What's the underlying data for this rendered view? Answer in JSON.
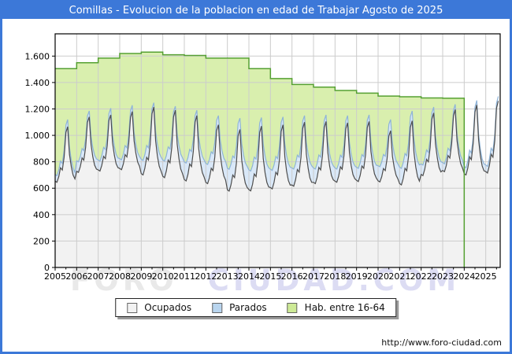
{
  "window": {
    "title": "Comillas - Evolucion de la poblacion en edad de Trabajar Agosto de 2025"
  },
  "footer": {
    "url": "http://www.foro-ciudad.com"
  },
  "watermark": {
    "part1": "FORO",
    "part2": "CIUDAD.COM"
  },
  "legend": {
    "items": [
      {
        "label": "Ocupados",
        "color": "#f2f2f2",
        "border": "#666666"
      },
      {
        "label": "Parados",
        "color": "#b9d5ef",
        "border": "#666666"
      },
      {
        "label": "Hab. entre 16-64",
        "color": "#cdea96",
        "border": "#666666"
      }
    ]
  },
  "chart_data": {
    "type": "area",
    "title": "Comillas - Evolucion de la poblacion en edad de Trabajar Agosto de 2025",
    "xlabel": "",
    "ylabel": "",
    "grid": true,
    "legend_position": "bottom",
    "ylim": [
      0,
      1700
    ],
    "xlim": [
      2005,
      2025.67
    ],
    "y_ticks": [
      {
        "value": 0,
        "label": "0"
      },
      {
        "value": 200,
        "label": "200"
      },
      {
        "value": 400,
        "label": "400"
      },
      {
        "value": 600,
        "label": "600"
      },
      {
        "value": 800,
        "label": "800"
      },
      {
        "value": 1000,
        "label": "1.000"
      },
      {
        "value": 1200,
        "label": "1.200"
      },
      {
        "value": 1400,
        "label": "1.400"
      },
      {
        "value": 1600,
        "label": "1.600"
      }
    ],
    "x_tick_labels": [
      "2005",
      "2006",
      "2007",
      "2008",
      "2009",
      "2010",
      "2011",
      "2012",
      "2013",
      "2014",
      "2015",
      "2016",
      "2017",
      "2018",
      "2019",
      "2020",
      "2021",
      "2022",
      "2023",
      "2024",
      "2025"
    ],
    "colors": {
      "hab_fill": "#d9efae",
      "hab_line": "#55a032",
      "parados_fill": "#d9e8f8",
      "parados_line": "#8fb4d8",
      "ocupados_fill": "#f2f2f2",
      "ocupados_line": "#4d4d4d",
      "grid": "#cccccc",
      "axis": "#000000"
    },
    "hab_16_64": {
      "name": "Hab. entre 16-64",
      "years": [
        2005,
        2006,
        2007,
        2008,
        2009,
        2010,
        2011,
        2012,
        2013,
        2014,
        2015,
        2016,
        2017,
        2018,
        2019,
        2020,
        2021,
        2022,
        2023
      ],
      "values": [
        1505,
        1550,
        1585,
        1620,
        1630,
        1610,
        1605,
        1585,
        1585,
        1505,
        1430,
        1385,
        1365,
        1340,
        1320,
        1297,
        1292,
        1283,
        1281
      ],
      "series_ends_at_year": 2024
    },
    "seasonal_profile": [
      0.02,
      0.0,
      0.1,
      0.26,
      0.22,
      0.45,
      0.9,
      1.0,
      0.5,
      0.28,
      0.13,
      0.06
    ],
    "employment_by_year": [
      {
        "year": 2005,
        "ocupados_winter": 645,
        "ocupados_summer": 1065,
        "parados_winter": 50,
        "parados_summer": 55,
        "months": 12
      },
      {
        "year": 2006,
        "ocupados_winter": 720,
        "ocupados_summer": 1140,
        "parados_winter": 80,
        "parados_summer": 45,
        "months": 12
      },
      {
        "year": 2007,
        "ocupados_winter": 730,
        "ocupados_summer": 1155,
        "parados_winter": 75,
        "parados_summer": 50,
        "months": 12
      },
      {
        "year": 2008,
        "ocupados_winter": 740,
        "ocupados_summer": 1180,
        "parados_winter": 75,
        "parados_summer": 48,
        "months": 12
      },
      {
        "year": 2009,
        "ocupados_winter": 700,
        "ocupados_summer": 1215,
        "parados_winter": 110,
        "parados_summer": 32,
        "months": 12
      },
      {
        "year": 2010,
        "ocupados_winter": 680,
        "ocupados_summer": 1190,
        "parados_winter": 125,
        "parados_summer": 30,
        "months": 12
      },
      {
        "year": 2011,
        "ocupados_winter": 655,
        "ocupados_summer": 1150,
        "parados_winter": 135,
        "parados_summer": 40,
        "months": 12
      },
      {
        "year": 2012,
        "ocupados_winter": 635,
        "ocupados_summer": 1080,
        "parados_winter": 145,
        "parados_summer": 70,
        "months": 12
      },
      {
        "year": 2013,
        "ocupados_winter": 578,
        "ocupados_summer": 1045,
        "parados_winter": 165,
        "parados_summer": 85,
        "months": 12
      },
      {
        "year": 2014,
        "ocupados_winter": 580,
        "ocupados_summer": 1070,
        "parados_winter": 150,
        "parados_summer": 65,
        "months": 12
      },
      {
        "year": 2015,
        "ocupados_winter": 595,
        "ocupados_summer": 1080,
        "parados_winter": 140,
        "parados_summer": 60,
        "months": 12
      },
      {
        "year": 2016,
        "ocupados_winter": 615,
        "ocupados_summer": 1100,
        "parados_winter": 130,
        "parados_summer": 50,
        "months": 12
      },
      {
        "year": 2017,
        "ocupados_winter": 635,
        "ocupados_summer": 1105,
        "parados_winter": 110,
        "parados_summer": 50,
        "months": 12
      },
      {
        "year": 2018,
        "ocupados_winter": 645,
        "ocupados_summer": 1095,
        "parados_winter": 100,
        "parados_summer": 55,
        "months": 12
      },
      {
        "year": 2019,
        "ocupados_winter": 650,
        "ocupados_summer": 1105,
        "parados_winter": 100,
        "parados_summer": 50,
        "months": 12
      },
      {
        "year": 2020,
        "ocupados_winter": 648,
        "ocupados_summer": 1035,
        "parados_winter": 115,
        "parados_summer": 85,
        "months": 12
      },
      {
        "year": 2021,
        "ocupados_winter": 625,
        "ocupados_summer": 1110,
        "parados_winter": 125,
        "parados_summer": 75,
        "months": 12
      },
      {
        "year": 2022,
        "ocupados_winter": 695,
        "ocupados_summer": 1170,
        "parados_winter": 80,
        "parados_summer": 45,
        "months": 12
      },
      {
        "year": 2023,
        "ocupados_winter": 725,
        "ocupados_summer": 1195,
        "parados_winter": 60,
        "parados_summer": 40,
        "months": 12
      },
      {
        "year": 2024,
        "ocupados_winter": 700,
        "ocupados_summer": 1230,
        "parados_winter": 55,
        "parados_summer": 35,
        "months": 12
      },
      {
        "year": 2025,
        "ocupados_winter": 715,
        "ocupados_summer": 1260,
        "parados_winter": 50,
        "parados_summer": 35,
        "months": 8
      }
    ]
  }
}
